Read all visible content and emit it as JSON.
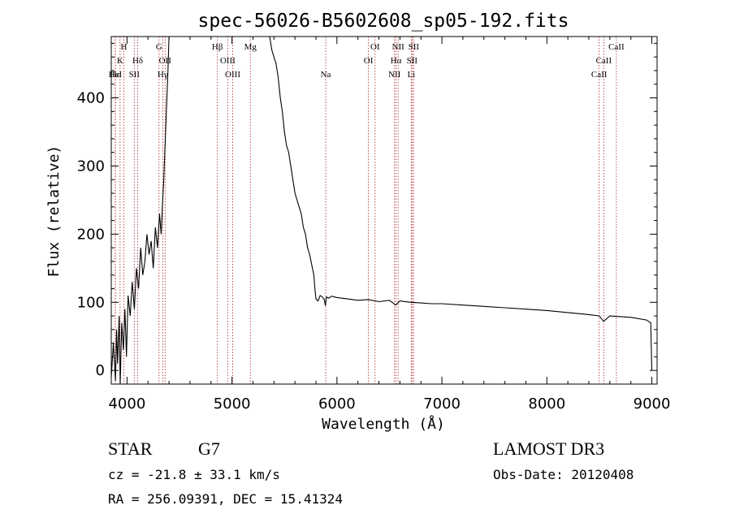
{
  "chart_data": {
    "type": "line",
    "title": "spec-56026-B5602608_sp05-192.fits",
    "xlabel": "Wavelength (Å)",
    "ylabel": "Flux (relative)",
    "xlim": [
      3850,
      9050
    ],
    "ylim": [
      -20,
      490
    ],
    "x_ticks": [
      4000,
      5000,
      6000,
      7000,
      8000,
      9000
    ],
    "y_ticks": [
      0,
      100,
      200,
      300,
      400
    ],
    "grid": false,
    "series": [
      {
        "name": "flux",
        "x": [
          3850,
          3870,
          3890,
          3900,
          3910,
          3925,
          3935,
          3950,
          3965,
          3980,
          3995,
          4010,
          4030,
          4050,
          4070,
          4090,
          4110,
          4130,
          4150,
          4170,
          4190,
          4210,
          4230,
          4250,
          4270,
          4290,
          4310,
          4325,
          4340,
          4350,
          4360,
          4370,
          4380,
          4390,
          4400,
          5360,
          5380,
          5400,
          5420,
          5440,
          5460,
          5480,
          5500,
          5520,
          5540,
          5560,
          5580,
          5600,
          5620,
          5640,
          5660,
          5680,
          5700,
          5720,
          5740,
          5760,
          5780,
          5790,
          5800,
          5820,
          5840,
          5860,
          5880,
          5890,
          5900,
          5920,
          5950,
          6000,
          6100,
          6200,
          6300,
          6400,
          6500,
          6560,
          6600,
          6700,
          6800,
          6900,
          7000,
          7200,
          7400,
          7600,
          7800,
          8000,
          8200,
          8400,
          8500,
          8540,
          8600,
          8800,
          8950,
          8990,
          9000
        ],
        "y": [
          -10,
          40,
          -15,
          60,
          10,
          80,
          -20,
          70,
          30,
          90,
          20,
          110,
          80,
          130,
          90,
          150,
          120,
          180,
          140,
          160,
          200,
          170,
          190,
          150,
          210,
          180,
          230,
          200,
          250,
          280,
          320,
          360,
          400,
          440,
          490,
          490,
          470,
          460,
          450,
          430,
          400,
          380,
          350,
          330,
          320,
          300,
          280,
          260,
          250,
          240,
          230,
          210,
          200,
          180,
          170,
          155,
          140,
          120,
          105,
          102,
          110,
          108,
          104,
          95,
          108,
          106,
          109,
          107,
          105,
          103,
          104,
          101,
          103,
          96,
          102,
          100,
          99,
          98,
          98,
          96,
          94,
          92,
          90,
          88,
          85,
          82,
          80,
          72,
          80,
          78,
          74,
          70,
          0
        ]
      }
    ],
    "line_markers": [
      {
        "label": "H",
        "wave": 3970,
        "row": 1
      },
      {
        "label": "K",
        "wave": 3934,
        "row": 2
      },
      {
        "label": "Hε",
        "wave": 3889,
        "row": 3
      },
      {
        "label": "HeI",
        "wave": 3888,
        "row": 3
      },
      {
        "label": "SII",
        "wave": 4069,
        "row": 3
      },
      {
        "label": "Hδ",
        "wave": 4102,
        "row": 2
      },
      {
        "label": "G",
        "wave": 4305,
        "row": 1
      },
      {
        "label": "OII",
        "wave": 4363,
        "row": 2
      },
      {
        "label": "Hγ",
        "wave": 4340,
        "row": 3
      },
      {
        "label": "Hβ",
        "wave": 4861,
        "row": 1
      },
      {
        "label": "OIII",
        "wave": 4959,
        "row": 2
      },
      {
        "label": "OIII",
        "wave": 5007,
        "row": 3
      },
      {
        "label": "Mg",
        "wave": 5175,
        "row": 1
      },
      {
        "label": "Na",
        "wave": 5893,
        "row": 3
      },
      {
        "label": "OI",
        "wave": 6363,
        "row": 1
      },
      {
        "label": "OI",
        "wave": 6300,
        "row": 2
      },
      {
        "label": "NII",
        "wave": 6583,
        "row": 1
      },
      {
        "label": "Hα",
        "wave": 6563,
        "row": 2
      },
      {
        "label": "NII",
        "wave": 6548,
        "row": 3
      },
      {
        "label": "SII",
        "wave": 6731,
        "row": 1
      },
      {
        "label": "SII",
        "wave": 6716,
        "row": 2
      },
      {
        "label": "Li",
        "wave": 6708,
        "row": 3
      },
      {
        "label": "CaII",
        "wave": 8662,
        "row": 1
      },
      {
        "label": "CaII",
        "wave": 8542,
        "row": 2
      },
      {
        "label": "CaII",
        "wave": 8498,
        "row": 3
      }
    ]
  },
  "info": {
    "object_class": "STAR",
    "subclass": "G7",
    "survey": "LAMOST DR3",
    "redshift": "cz = -21.8 ± 33.1 km/s",
    "obs_date": "Obs-Date: 20120408",
    "coords": "RA = 256.09391, DEC =  15.41324"
  }
}
